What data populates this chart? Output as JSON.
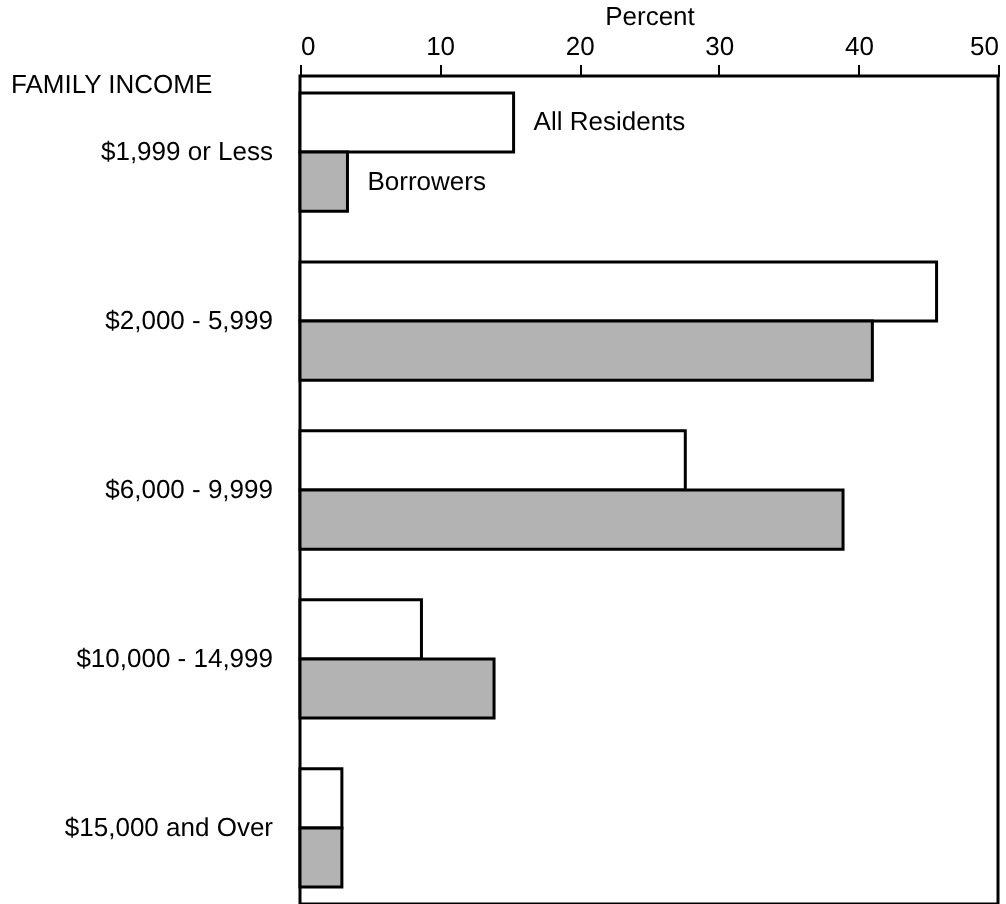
{
  "chart_data": {
    "type": "bar",
    "orientation": "horizontal",
    "xlabel": "Percent",
    "ylabel": "FAMILY INCOME",
    "categories": [
      "$1,999 or Less",
      "$2,000 - 5,999",
      "$6,000 - 9,999",
      "$10,000 - 14,999",
      "$15,000 and Over"
    ],
    "series": [
      {
        "name": "All Residents",
        "color": "#ffffff",
        "values": [
          15.3,
          45.6,
          27.6,
          8.7,
          3.0
        ]
      },
      {
        "name": "Borrowers",
        "color": "#b3b3b3",
        "values": [
          3.4,
          41.0,
          38.9,
          13.9,
          3.0
        ]
      }
    ],
    "xlim": [
      0,
      50
    ],
    "xticks": [
      0,
      10,
      20,
      30,
      40,
      50
    ],
    "grid": false,
    "legend": false
  }
}
